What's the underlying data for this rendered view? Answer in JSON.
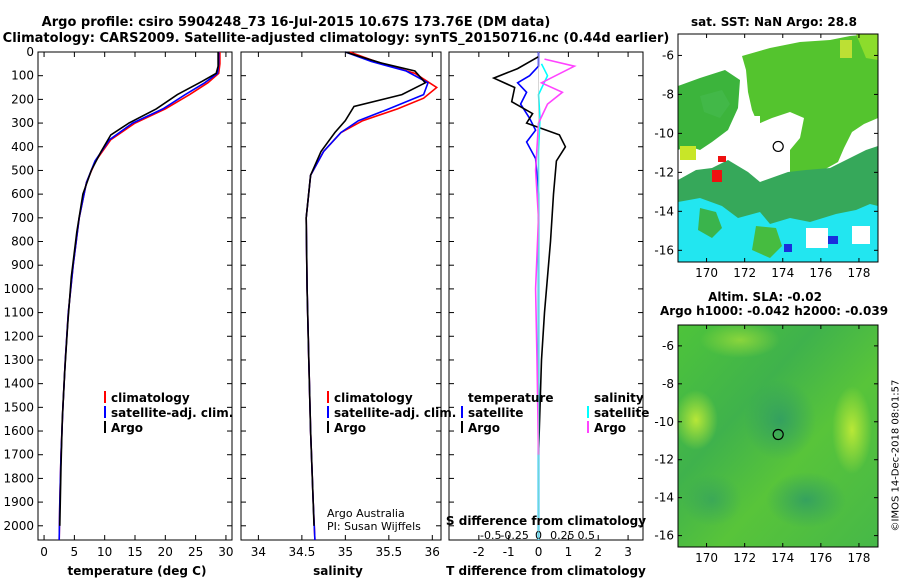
{
  "header": {
    "title_line1": "Argo profile: csiro 5904248_73 16-Jul-2015 10.67S 173.76E (DM data)",
    "title_line2": "Climatology: CARS2009. Satellite-adjusted climatology: synTS_20150716.nc (0.44d earlier)"
  },
  "credit": "©IMOS 14-Dec-2018 08:01:57",
  "colors": {
    "climatology": "#ff0000",
    "satellite": "#0000ff",
    "argo": "#000000",
    "sat_s": "#00ffff",
    "argo_s": "#ff44ff"
  },
  "chart_data": [
    {
      "id": "temperature",
      "type": "line",
      "xlabel": "temperature (deg C)",
      "ylabel": "pressure",
      "xlim": [
        -1,
        31
      ],
      "ylim": [
        2060,
        0
      ],
      "xticks": [
        0,
        5,
        10,
        15,
        20,
        25,
        30
      ],
      "yticks": [
        0,
        100,
        200,
        300,
        400,
        500,
        600,
        700,
        800,
        900,
        1000,
        1100,
        1200,
        1300,
        1400,
        1500,
        1600,
        1700,
        1800,
        1900,
        2000
      ],
      "legend": [
        "climatology",
        "satellite-adj. clim.",
        "Argo"
      ],
      "series": [
        {
          "name": "climatology",
          "points": [
            [
              29.0,
              0
            ],
            [
              29.0,
              50
            ],
            [
              28.8,
              90
            ],
            [
              27,
              130
            ],
            [
              24,
              180
            ],
            [
              20,
              240
            ],
            [
              15,
              300
            ],
            [
              11,
              370
            ],
            [
              8.5,
              460
            ],
            [
              7.0,
              550
            ],
            [
              5.8,
              700
            ],
            [
              4.8,
              900
            ],
            [
              4.0,
              1100
            ],
            [
              3.5,
              1300
            ],
            [
              3.1,
              1500
            ],
            [
              2.8,
              1700
            ],
            [
              2.6,
              1900
            ],
            [
              2.5,
              2060
            ]
          ]
        },
        {
          "name": "satellite",
          "points": [
            [
              28.8,
              0
            ],
            [
              28.8,
              50
            ],
            [
              28.6,
              90
            ],
            [
              26.5,
              130
            ],
            [
              23.3,
              180
            ],
            [
              19.6,
              240
            ],
            [
              14.6,
              300
            ],
            [
              10.8,
              370
            ],
            [
              8.4,
              460
            ],
            [
              7.0,
              550
            ],
            [
              5.8,
              700
            ],
            [
              4.8,
              900
            ],
            [
              4.0,
              1100
            ],
            [
              3.5,
              1300
            ],
            [
              3.1,
              1500
            ],
            [
              2.8,
              1700
            ],
            [
              2.6,
              1900
            ],
            [
              2.5,
              2060
            ]
          ]
        },
        {
          "name": "Argo",
          "points": [
            [
              28.7,
              0
            ],
            [
              28.7,
              60
            ],
            [
              28.4,
              90
            ],
            [
              26,
              125
            ],
            [
              22,
              180
            ],
            [
              18.5,
              240
            ],
            [
              14,
              300
            ],
            [
              11,
              350
            ],
            [
              9.4,
              420
            ],
            [
              7.8,
              500
            ],
            [
              6.4,
              600
            ],
            [
              5.4,
              760
            ],
            [
              4.5,
              950
            ],
            [
              3.9,
              1150
            ],
            [
              3.4,
              1350
            ],
            [
              3.0,
              1550
            ],
            [
              2.8,
              1750
            ],
            [
              2.6,
              2000
            ]
          ]
        }
      ]
    },
    {
      "id": "salinity",
      "type": "line",
      "xlabel": "salinity",
      "xlim": [
        33.8,
        36.1
      ],
      "ylim": [
        2060,
        0
      ],
      "xticks": [
        34,
        34.5,
        35,
        35.5,
        36
      ],
      "legend": [
        "climatology",
        "satellite-adj. clim.",
        "Argo"
      ],
      "annotation": [
        "Argo Australia",
        "PI: Susan Wijffels"
      ],
      "series": [
        {
          "name": "climatology",
          "points": [
            [
              35.05,
              0
            ],
            [
              35.35,
              40
            ],
            [
              35.8,
              90
            ],
            [
              36.05,
              150
            ],
            [
              35.9,
              195
            ],
            [
              35.6,
              240
            ],
            [
              35.2,
              290
            ],
            [
              34.95,
              340
            ],
            [
              34.75,
              420
            ],
            [
              34.6,
              520
            ],
            [
              34.55,
              700
            ],
            [
              34.56,
              1000
            ],
            [
              34.58,
              1300
            ],
            [
              34.6,
              1600
            ],
            [
              34.63,
              1900
            ],
            [
              34.65,
              2060
            ]
          ]
        },
        {
          "name": "satellite",
          "points": [
            [
              35.0,
              0
            ],
            [
              35.3,
              40
            ],
            [
              35.7,
              80
            ],
            [
              35.95,
              130
            ],
            [
              35.9,
              180
            ],
            [
              35.5,
              240
            ],
            [
              35.15,
              290
            ],
            [
              34.95,
              340
            ],
            [
              34.75,
              420
            ],
            [
              34.6,
              520
            ],
            [
              34.55,
              700
            ],
            [
              34.56,
              1000
            ],
            [
              34.58,
              1300
            ],
            [
              34.6,
              1600
            ],
            [
              34.63,
              1900
            ],
            [
              34.65,
              2060
            ]
          ]
        },
        {
          "name": "Argo",
          "points": [
            [
              35.0,
              0
            ],
            [
              35.4,
              45
            ],
            [
              35.8,
              80
            ],
            [
              35.92,
              130
            ],
            [
              35.65,
              180
            ],
            [
              35.1,
              230
            ],
            [
              35.0,
              290
            ],
            [
              34.88,
              340
            ],
            [
              34.72,
              420
            ],
            [
              34.6,
              520
            ],
            [
              34.55,
              700
            ],
            [
              34.56,
              1000
            ],
            [
              34.58,
              1300
            ],
            [
              34.6,
              1600
            ],
            [
              34.63,
              1900
            ],
            [
              34.64,
              2000
            ]
          ]
        }
      ]
    },
    {
      "id": "difference",
      "type": "line",
      "xlabel": "T difference from climatology",
      "xlabel_top": "S difference from climatology",
      "xlim": [
        -3,
        3.5
      ],
      "ylim": [
        2060,
        0
      ],
      "xticks": [
        -2,
        -1,
        0,
        1,
        2,
        3
      ],
      "xticks_s": [
        -0.5,
        -0.25,
        0,
        0.25,
        0.5
      ],
      "legend_left_title": "temperature",
      "legend_right_title": "salinity",
      "legend_left": [
        "satellite",
        "Argo"
      ],
      "legend_right": [
        "satellite",
        "Argo"
      ],
      "series": [
        {
          "name": "T satellite",
          "points": [
            [
              0,
              0
            ],
            [
              0,
              60
            ],
            [
              -0.3,
              100
            ],
            [
              -0.7,
              130
            ],
            [
              -0.4,
              170
            ],
            [
              -0.6,
              220
            ],
            [
              -0.3,
              280
            ],
            [
              -0.1,
              330
            ],
            [
              -0.4,
              380
            ],
            [
              -0.1,
              450
            ],
            [
              0,
              600
            ],
            [
              0,
              2060
            ]
          ]
        },
        {
          "name": "T Argo",
          "points": [
            [
              0,
              20
            ],
            [
              -0.7,
              70
            ],
            [
              -1.5,
              110
            ],
            [
              -0.8,
              150
            ],
            [
              -0.9,
              210
            ],
            [
              -0.2,
              260
            ],
            [
              -0.4,
              300
            ],
            [
              0.7,
              350
            ],
            [
              0.9,
              400
            ],
            [
              0.6,
              460
            ],
            [
              0.5,
              600
            ],
            [
              0.4,
              800
            ],
            [
              0.2,
              1100
            ],
            [
              0.1,
              1300
            ],
            [
              0.05,
              1500
            ],
            [
              0,
              1700
            ]
          ]
        },
        {
          "name": "S satellite",
          "points": [
            [
              0.1,
              50
            ],
            [
              0.3,
              100
            ],
            [
              0,
              180
            ],
            [
              0.05,
              280
            ],
            [
              0,
              420
            ],
            [
              0,
              2060
            ]
          ]
        },
        {
          "name": "S Argo",
          "points": [
            [
              0.2,
              30
            ],
            [
              1.2,
              60
            ],
            [
              0.1,
              130
            ],
            [
              0.8,
              170
            ],
            [
              0.3,
              220
            ],
            [
              0,
              300
            ],
            [
              -0.1,
              500
            ],
            [
              0,
              700
            ],
            [
              -0.1,
              1000
            ],
            [
              -0.05,
              1300
            ],
            [
              0,
              1700
            ]
          ]
        }
      ]
    }
  ],
  "maps": [
    {
      "id": "sst-map",
      "title": "sat. SST: NaN Argo: 28.8",
      "xticks": [
        170,
        172,
        174,
        176,
        178
      ],
      "yticks": [
        -6,
        -8,
        -10,
        -12,
        -14,
        -16
      ],
      "xlim": [
        168.5,
        179
      ],
      "ylim": [
        -16.6,
        -4.9
      ],
      "marker": [
        173.76,
        -10.67
      ]
    },
    {
      "id": "sla-map",
      "title_line1": "Altim. SLA: -0.02",
      "title_line2": "Argo h1000: -0.042 h2000: -0.039",
      "xticks": [
        170,
        172,
        174,
        176,
        178
      ],
      "yticks": [
        -6,
        -8,
        -10,
        -12,
        -14,
        -16
      ],
      "xlim": [
        168.5,
        179
      ],
      "ylim": [
        -16.6,
        -4.9
      ],
      "marker": [
        173.76,
        -10.67
      ]
    }
  ]
}
